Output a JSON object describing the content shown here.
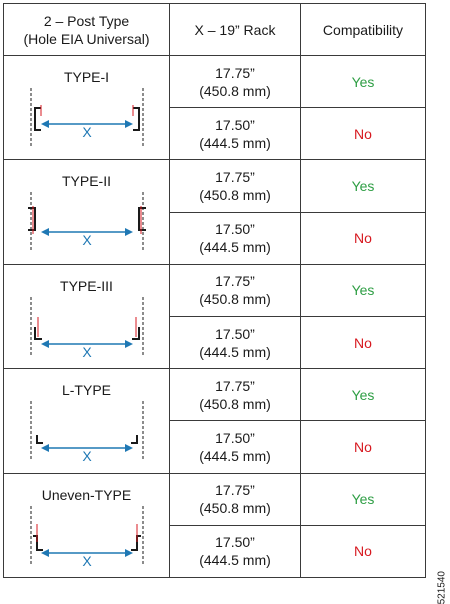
{
  "header": {
    "post_type_line1": "2 – Post Type",
    "post_type_line2": "(Hole EIA Universal)",
    "rack": "X – 19” Rack",
    "compatibility": "Compatibility"
  },
  "rows": [
    {
      "type": "TYPE-I",
      "w1_in": "17.75”",
      "w1_mm": "(450.8 mm)",
      "c1": "Yes",
      "w2_in": "17.50”",
      "w2_mm": "(444.5 mm)",
      "c2": "No"
    },
    {
      "type": "TYPE-II",
      "w1_in": "17.75”",
      "w1_mm": "(450.8 mm)",
      "c1": "Yes",
      "w2_in": "17.50”",
      "w2_mm": "(444.5 mm)",
      "c2": "No"
    },
    {
      "type": "TYPE-III",
      "w1_in": "17.75”",
      "w1_mm": "(450.8 mm)",
      "c1": "Yes",
      "w2_in": "17.50”",
      "w2_mm": "(444.5 mm)",
      "c2": "No"
    },
    {
      "type": "L-TYPE",
      "w1_in": "17.75”",
      "w1_mm": "(450.8 mm)",
      "c1": "Yes",
      "w2_in": "17.50”",
      "w2_mm": "(444.5 mm)",
      "c2": "No"
    },
    {
      "type": "Uneven-TYPE",
      "w1_in": "17.75”",
      "w1_mm": "(450.8 mm)",
      "c1": "Yes",
      "w2_in": "17.50”",
      "w2_mm": "(444.5 mm)",
      "c2": "No"
    }
  ],
  "dimension_label": "X",
  "figure_id": "521540",
  "colors": {
    "yes": "#2e9e44",
    "no": "#d71920",
    "dimension": "#1f78b4",
    "hole": "#d71920"
  }
}
